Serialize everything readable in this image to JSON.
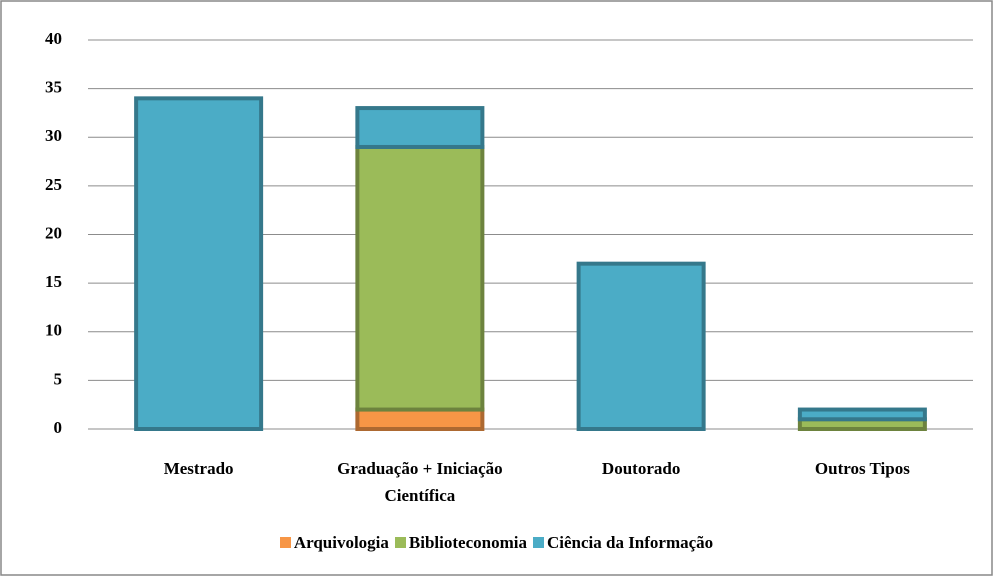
{
  "chart_data": {
    "type": "stacked_bar",
    "categories": [
      "Mestrado",
      "Graduação + Iniciação Científica",
      "Doutorado",
      "Outros Tipos"
    ],
    "series": [
      {
        "name": "Arquivologia",
        "color": "#f79646",
        "values": [
          0,
          2,
          0,
          0
        ]
      },
      {
        "name": "Biblioteconomia",
        "color": "#9bbb59",
        "values": [
          0,
          27,
          0,
          1
        ]
      },
      {
        "name": "Ciência da Informação",
        "color": "#4bacc6",
        "values": [
          34,
          4,
          17,
          1
        ]
      }
    ],
    "ylim": [
      0,
      40
    ],
    "yticks": [
      0,
      5,
      10,
      15,
      20,
      25,
      30,
      35,
      40
    ],
    "grid": true,
    "legend": "bottom"
  }
}
